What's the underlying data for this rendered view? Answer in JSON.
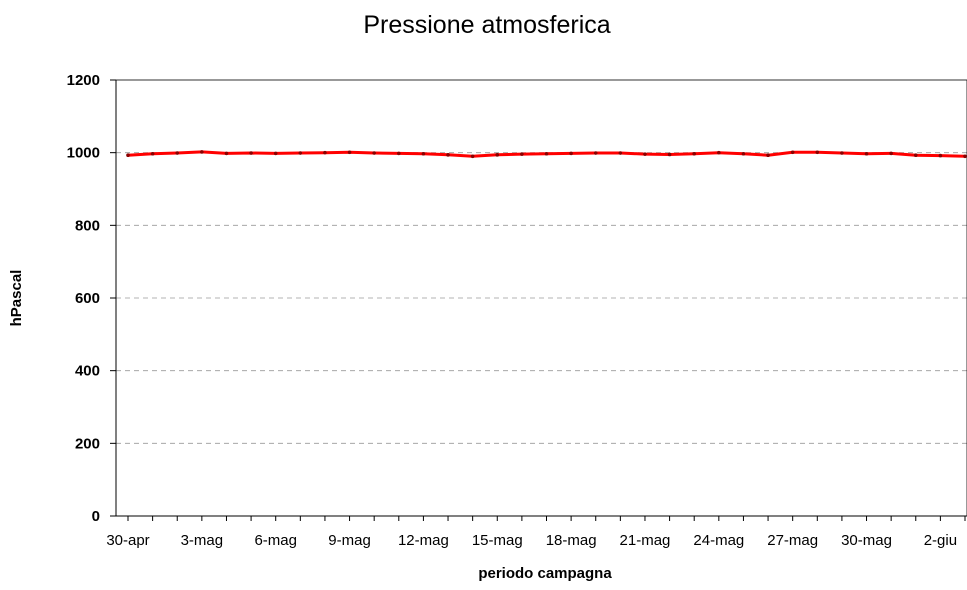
{
  "chart_data": {
    "type": "line",
    "title": "Pressione atmosferica",
    "xlabel": "periodo campagna",
    "ylabel": "hPascal",
    "ylim": [
      0,
      1200
    ],
    "yticks": [
      "0",
      "200",
      "400",
      "600",
      "800",
      "1000",
      "1200"
    ],
    "grid": "horizontal-dashed",
    "legend": "none",
    "x_tick_labels": [
      "30-apr",
      "3-mag",
      "6-mag",
      "9-mag",
      "12-mag",
      "15-mag",
      "18-mag",
      "21-mag",
      "24-mag",
      "27-mag",
      "30-mag",
      "2-giu"
    ],
    "x": [
      "30-apr",
      "1-mag",
      "2-mag",
      "3-mag",
      "4-mag",
      "5-mag",
      "6-mag",
      "7-mag",
      "8-mag",
      "9-mag",
      "10-mag",
      "11-mag",
      "12-mag",
      "13-mag",
      "14-mag",
      "15-mag",
      "16-mag",
      "17-mag",
      "18-mag",
      "19-mag",
      "20-mag",
      "21-mag",
      "22-mag",
      "23-mag",
      "24-mag",
      "25-mag",
      "26-mag",
      "27-mag",
      "28-mag",
      "29-mag",
      "30-mag",
      "31-mag",
      "1-giu",
      "2-giu",
      "3-giu"
    ],
    "series": [
      {
        "color": "#ff0000",
        "values": [
          993,
          997,
          999,
          1002,
          998,
          999,
          998,
          999,
          1000,
          1001,
          999,
          998,
          997,
          994,
          990,
          994,
          996,
          997,
          998,
          999,
          999,
          996,
          995,
          997,
          1000,
          997,
          993,
          1001,
          1001,
          999,
          997,
          998,
          993,
          992,
          990
        ]
      }
    ]
  }
}
